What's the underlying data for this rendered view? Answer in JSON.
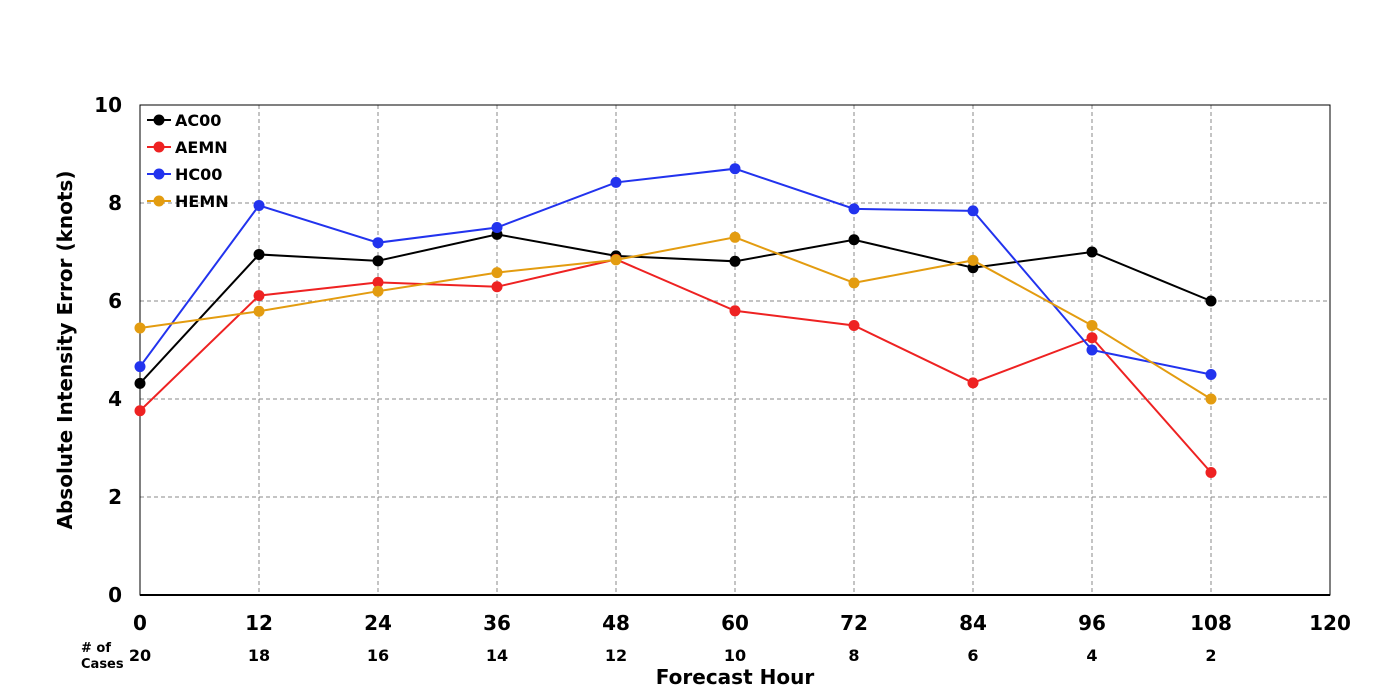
{
  "chart_data": {
    "type": "line",
    "xlabel": "Forecast Hour",
    "ylabel": "Absolute Intensity Error (knots)",
    "xlim": [
      0,
      120
    ],
    "ylim": [
      0,
      10
    ],
    "xticks": [
      0,
      12,
      24,
      36,
      48,
      60,
      72,
      84,
      96,
      108,
      120
    ],
    "yticks": [
      0,
      2,
      4,
      6,
      8,
      10
    ],
    "grid": true,
    "legend_position": "top-left",
    "cases_heading": "# of Cases",
    "cases": [
      {
        "x": 0,
        "label": "20"
      },
      {
        "x": 12,
        "label": "18"
      },
      {
        "x": 24,
        "label": "16"
      },
      {
        "x": 36,
        "label": "14"
      },
      {
        "x": 48,
        "label": "12"
      },
      {
        "x": 60,
        "label": "10"
      },
      {
        "x": 72,
        "label": "8"
      },
      {
        "x": 84,
        "label": "6"
      },
      {
        "x": 96,
        "label": "4"
      },
      {
        "x": 108,
        "label": "2"
      }
    ],
    "x": [
      0,
      12,
      24,
      36,
      48,
      60,
      72,
      84,
      96,
      108
    ],
    "series": [
      {
        "name": "AC00",
        "color": "#000000",
        "values": [
          4.32,
          6.95,
          6.82,
          7.36,
          6.92,
          6.81,
          7.25,
          6.68,
          7.0,
          6.0
        ]
      },
      {
        "name": "AEMN",
        "color": "#ee2222",
        "values": [
          3.76,
          6.11,
          6.38,
          6.29,
          6.85,
          5.8,
          5.5,
          4.33,
          5.25,
          2.5
        ]
      },
      {
        "name": "HC00",
        "color": "#2233ee",
        "values": [
          4.66,
          7.95,
          7.19,
          7.5,
          8.42,
          8.7,
          7.88,
          7.84,
          5.0,
          4.5
        ]
      },
      {
        "name": "HEMN",
        "color": "#e39c10",
        "values": [
          5.45,
          5.79,
          6.2,
          6.58,
          6.84,
          7.3,
          6.37,
          6.83,
          5.5,
          4.0
        ]
      }
    ]
  }
}
